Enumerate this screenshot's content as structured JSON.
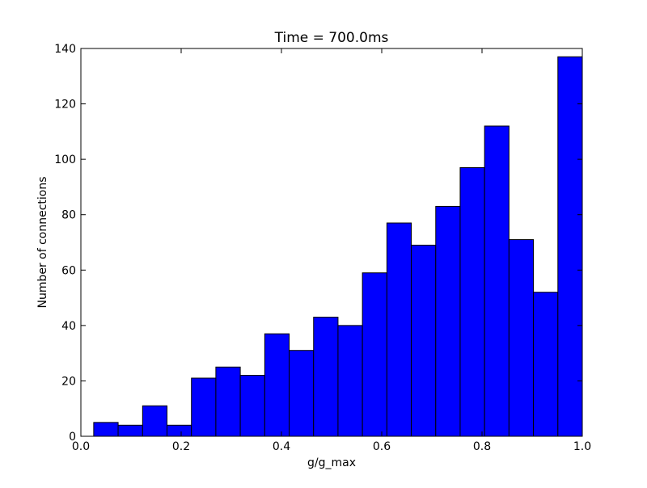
{
  "chart_data": {
    "type": "bar",
    "title": "Time = 700.0ms",
    "xlabel": "g/g_max",
    "ylabel": "Number of connections",
    "xlim": [
      0.0,
      1.0
    ],
    "ylim": [
      0,
      140
    ],
    "xticks": [
      "0.0",
      "0.2",
      "0.4",
      "0.6",
      "0.8",
      "1.0"
    ],
    "yticks": [
      "0",
      "20",
      "40",
      "60",
      "80",
      "100",
      "120",
      "140"
    ],
    "grid": false,
    "bar_color": "#0000ff",
    "edge_color": "#000000",
    "bins": [
      {
        "x0": 0.0256,
        "x1": 0.0743,
        "value": 5
      },
      {
        "x0": 0.0743,
        "x1": 0.1231,
        "value": 4
      },
      {
        "x0": 0.1231,
        "x1": 0.1718,
        "value": 11
      },
      {
        "x0": 0.1718,
        "x1": 0.2205,
        "value": 4
      },
      {
        "x0": 0.2205,
        "x1": 0.2692,
        "value": 21
      },
      {
        "x0": 0.2692,
        "x1": 0.3179,
        "value": 25
      },
      {
        "x0": 0.3179,
        "x1": 0.3667,
        "value": 22
      },
      {
        "x0": 0.3667,
        "x1": 0.4154,
        "value": 37
      },
      {
        "x0": 0.4154,
        "x1": 0.4641,
        "value": 31
      },
      {
        "x0": 0.4641,
        "x1": 0.5128,
        "value": 43
      },
      {
        "x0": 0.5128,
        "x1": 0.5615,
        "value": 40
      },
      {
        "x0": 0.5615,
        "x1": 0.6103,
        "value": 59
      },
      {
        "x0": 0.6103,
        "x1": 0.659,
        "value": 77
      },
      {
        "x0": 0.659,
        "x1": 0.7077,
        "value": 69
      },
      {
        "x0": 0.7077,
        "x1": 0.7564,
        "value": 83
      },
      {
        "x0": 0.7564,
        "x1": 0.8051,
        "value": 97
      },
      {
        "x0": 0.8051,
        "x1": 0.8538,
        "value": 112
      },
      {
        "x0": 0.8538,
        "x1": 0.9026,
        "value": 71
      },
      {
        "x0": 0.9026,
        "x1": 0.9513,
        "value": 52
      },
      {
        "x0": 0.9513,
        "x1": 1.0,
        "value": 137
      }
    ]
  }
}
